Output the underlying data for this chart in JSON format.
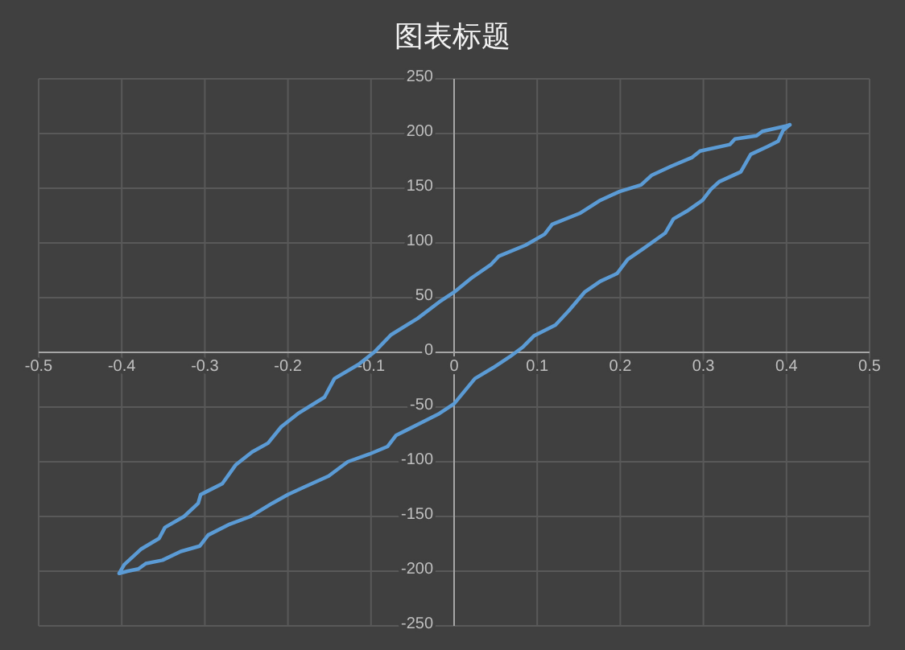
{
  "chart_data": {
    "type": "line",
    "title": "图表标题",
    "series": [
      {
        "color": "#5b9bd5",
        "x": [
          -0.403,
          -0.397,
          -0.377,
          -0.355,
          -0.348,
          -0.325,
          -0.308,
          -0.305,
          -0.279,
          -0.263,
          -0.243,
          -0.224,
          -0.208,
          -0.188,
          -0.156,
          -0.144,
          -0.115,
          -0.095,
          -0.076,
          -0.044,
          -0.018,
          0,
          0.021,
          0.044,
          0.054,
          0.086,
          0.109,
          0.118,
          0.151,
          0.176,
          0.199,
          0.225,
          0.238,
          0.261,
          0.286,
          0.296,
          0.332,
          0.338,
          0.364,
          0.371,
          0.4,
          0.404
        ],
        "values": [
          -202,
          -194,
          -180,
          -170,
          -160,
          -150,
          -138,
          -130,
          -120,
          -103,
          -91,
          -83,
          -68,
          -56,
          -41,
          -24,
          -11,
          1,
          16,
          31,
          46,
          55,
          68,
          80,
          88,
          98,
          108,
          117,
          127,
          139,
          147,
          153,
          162,
          170,
          178,
          184,
          190,
          195,
          198,
          202,
          207,
          208
        ]
      },
      {
        "color": "#5b9bd5",
        "x": [
          0.404,
          0.396,
          0.39,
          0.377,
          0.357,
          0.345,
          0.319,
          0.309,
          0.299,
          0.28,
          0.264,
          0.254,
          0.228,
          0.209,
          0.196,
          0.176,
          0.157,
          0.138,
          0.122,
          0.096,
          0.083,
          0.067,
          0.047,
          0.025,
          0,
          -0.018,
          -0.044,
          -0.07,
          -0.08,
          -0.102,
          -0.128,
          -0.151,
          -0.18,
          -0.2,
          -0.219,
          -0.245,
          -0.27,
          -0.296,
          -0.306,
          -0.329,
          -0.351,
          -0.371,
          -0.38,
          -0.393,
          -0.403
        ],
        "values": [
          208,
          203,
          193,
          188,
          181,
          165,
          156,
          149,
          139,
          129,
          122,
          109,
          95,
          85,
          72,
          65,
          55,
          38,
          25,
          15,
          5,
          -4,
          -14,
          -24,
          -47,
          -56,
          -66,
          -76,
          -86,
          -93,
          -100,
          -113,
          -123,
          -130,
          -138,
          -150,
          -157,
          -167,
          -177,
          -182,
          -190,
          -193,
          -198,
          -200,
          -202
        ]
      }
    ],
    "xlim": [
      -0.5,
      0.5
    ],
    "xticks": [
      -0.5,
      -0.4,
      -0.3,
      -0.2,
      -0.1,
      0,
      0.1,
      0.2,
      0.3,
      0.4,
      0.5
    ],
    "ylim": [
      -250,
      250
    ],
    "yticks": [
      -250,
      -200,
      -150,
      -100,
      -50,
      0,
      50,
      100,
      150,
      200,
      250
    ],
    "grid": true,
    "marker": "none",
    "line_style": "solid"
  }
}
